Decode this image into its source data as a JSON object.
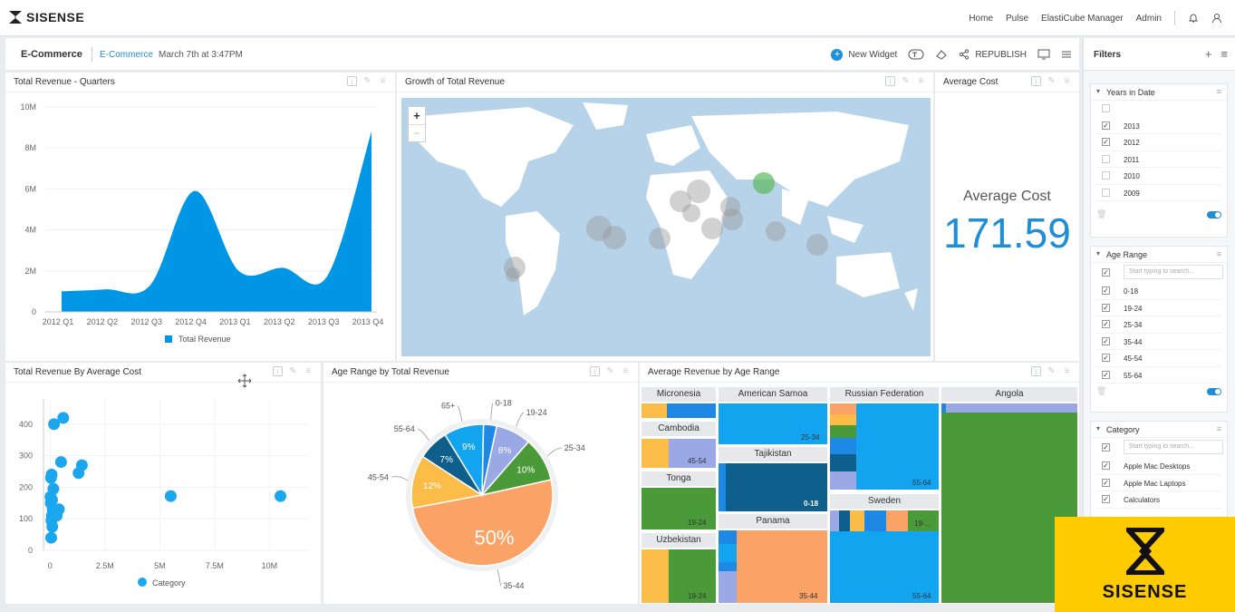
{
  "app": {
    "logo": "SISENSE",
    "nav": [
      "Home",
      "Pulse",
      "ElastiCube Manager",
      "Admin"
    ]
  },
  "dashboard": {
    "title": "E-Commerce",
    "crumb": "E-Commerce",
    "date": "March 7th at 3:47PM",
    "tools": {
      "new_widget": "New Widget",
      "republish": "REPUBLISH"
    }
  },
  "widgets": {
    "total_revenue_quarters": {
      "title": "Total Revenue - Quarters"
    },
    "growth_map": {
      "title": "Growth of Total Revenue",
      "zoom_in": "+",
      "zoom_out": "−"
    },
    "average_cost": {
      "title": "Average Cost",
      "label": "Average Cost",
      "value": "171.59"
    },
    "revenue_by_cost": {
      "title": "Total Revenue By Average Cost"
    },
    "age_range_revenue": {
      "title": "Age Range by Total Revenue"
    },
    "avg_revenue_age": {
      "title": "Average Revenue by Age Range"
    }
  },
  "chart_data": [
    {
      "type": "area",
      "categories": [
        "2012 Q1",
        "2012 Q2",
        "2012 Q3",
        "2012 Q4",
        "2013 Q1",
        "2013 Q2",
        "2013 Q3",
        "2013 Q4"
      ],
      "series": [
        {
          "name": "Total Revenue",
          "values": [
            1000000,
            1100000,
            1300000,
            5900000,
            2000000,
            2150000,
            1750000,
            8800000
          ]
        }
      ],
      "y_ticks": [
        "0",
        "2M",
        "4M",
        "6M",
        "8M",
        "10M"
      ],
      "ylim": [
        0,
        10000000
      ],
      "legend": "bottom",
      "color": "#0096e6"
    },
    {
      "type": "scatter",
      "series": [
        {
          "name": "Category",
          "points": [
            [
              50000,
              40
            ],
            [
              100000,
              75
            ],
            [
              80000,
              110
            ],
            [
              60000,
              95
            ],
            [
              30000,
              150
            ],
            [
              120000,
              130
            ],
            [
              20000,
              170
            ],
            [
              90000,
              160
            ],
            [
              150000,
              195
            ],
            [
              40000,
              230
            ],
            [
              70000,
              240
            ],
            [
              200000,
              120
            ],
            [
              300000,
              110
            ],
            [
              400000,
              130
            ],
            [
              500000,
              280
            ],
            [
              600000,
              420
            ],
            [
              180000,
              400
            ],
            [
              1300000,
              245
            ],
            [
              1450000,
              270
            ],
            [
              5500000,
              172
            ],
            [
              10500000,
              172
            ]
          ]
        }
      ],
      "x_ticks": [
        "0",
        "2.5M",
        "5M",
        "7.5M",
        "10M"
      ],
      "y_ticks": [
        "0",
        "100",
        "200",
        "300",
        "400"
      ],
      "xlim": [
        -300000,
        11800000
      ],
      "ylim": [
        0,
        480
      ],
      "legend": "bottom",
      "color": "#1aa7ee"
    },
    {
      "type": "pie",
      "slices": [
        {
          "label": "0-18",
          "value": 3,
          "pct": "",
          "color": "#1e88e5"
        },
        {
          "label": "19-24",
          "value": 8,
          "pct": "8%",
          "color": "#9aa9e6"
        },
        {
          "label": "25-34",
          "value": 10,
          "pct": "10%",
          "color": "#4a9a3a"
        },
        {
          "label": "35-44",
          "value": 50,
          "pct": "50%",
          "color": "#fba267"
        },
        {
          "label": "45-54",
          "value": 12,
          "pct": "12%",
          "color": "#fbbd48"
        },
        {
          "label": "55-64",
          "value": 7,
          "pct": "7%",
          "color": "#0e5f8c"
        },
        {
          "label": "65+",
          "value": 9,
          "pct": "9%",
          "color": "#12a4ef"
        }
      ]
    },
    {
      "type": "treemap",
      "cells": [
        {
          "label": "Micronesia",
          "value": ""
        },
        {
          "label": "Cambodia",
          "value": "45-54"
        },
        {
          "label": "Tonga",
          "value": "19-24"
        },
        {
          "label": "Uzbekistan",
          "value": "19-24"
        },
        {
          "label": "American Samoa",
          "value": "25-34"
        },
        {
          "label": "Tajikistan",
          "value": "0-18"
        },
        {
          "label": "Panama",
          "value": "35-44"
        },
        {
          "label": "Russian Federation",
          "value": "55-64"
        },
        {
          "label": "Sweden",
          "value": "19-..."
        },
        {
          "label": "Sweden2",
          "value": "55-64"
        },
        {
          "label": "Angola",
          "value": ""
        }
      ]
    }
  ],
  "filters": {
    "title": "Filters",
    "years": {
      "title": "Years in Date",
      "items": [
        "2013",
        "2012",
        "2011",
        "2010",
        "2009"
      ],
      "checked": [
        true,
        true,
        false,
        false,
        false
      ]
    },
    "age": {
      "title": "Age Range",
      "placeholder": "Start typing to search...",
      "items": [
        "0-18",
        "19-24",
        "25-34",
        "35-44",
        "45-54",
        "55-64"
      ]
    },
    "category": {
      "title": "Category",
      "placeholder": "Start typing to search...",
      "items": [
        "Apple Mac Desktops",
        "Apple Mac Laptops",
        "Calculators"
      ]
    }
  },
  "watermark": {
    "text": "SISENSE"
  }
}
